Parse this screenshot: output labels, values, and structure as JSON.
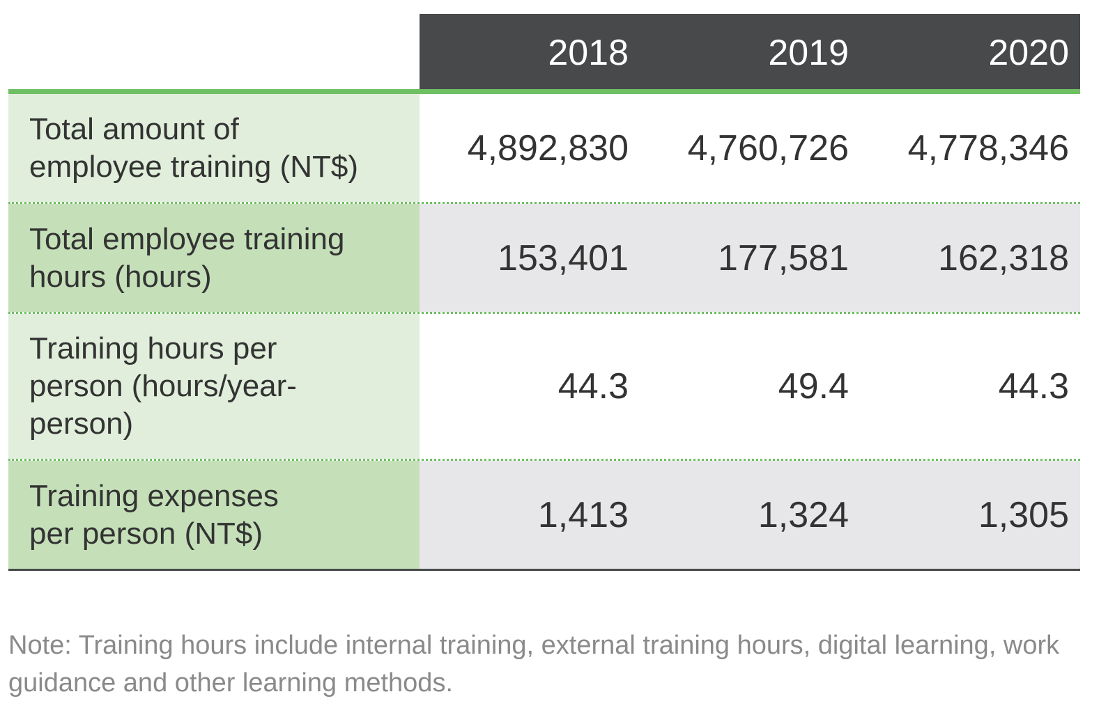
{
  "table": {
    "years": [
      "2018",
      "2019",
      "2020"
    ],
    "rows": [
      {
        "label": "Total amount of employee training (NT$)",
        "values": [
          "4,892,830",
          "4,760,726",
          "4,778,346"
        ]
      },
      {
        "label": "Total employee training hours (hours)",
        "values": [
          "153,401",
          "177,581",
          "162,318"
        ]
      },
      {
        "label": "Training hours per person (hours/year-person)",
        "values": [
          "44.3",
          "49.4",
          "44.3"
        ]
      },
      {
        "label": "Training expenses per person (NT$)",
        "values": [
          "1,413",
          "1,324",
          "1,305"
        ]
      }
    ]
  },
  "note": "Note: Training hours include internal training, external training hours, digital learning, work guidance and other learning methods.",
  "colors": {
    "header_bg": "#48494b",
    "accent_green": "#6fbf63",
    "label_light": "#e0eedb",
    "label_mid": "#c5e0b9",
    "value_gray": "#e7e7e9",
    "note_text": "#8a8a8a"
  }
}
